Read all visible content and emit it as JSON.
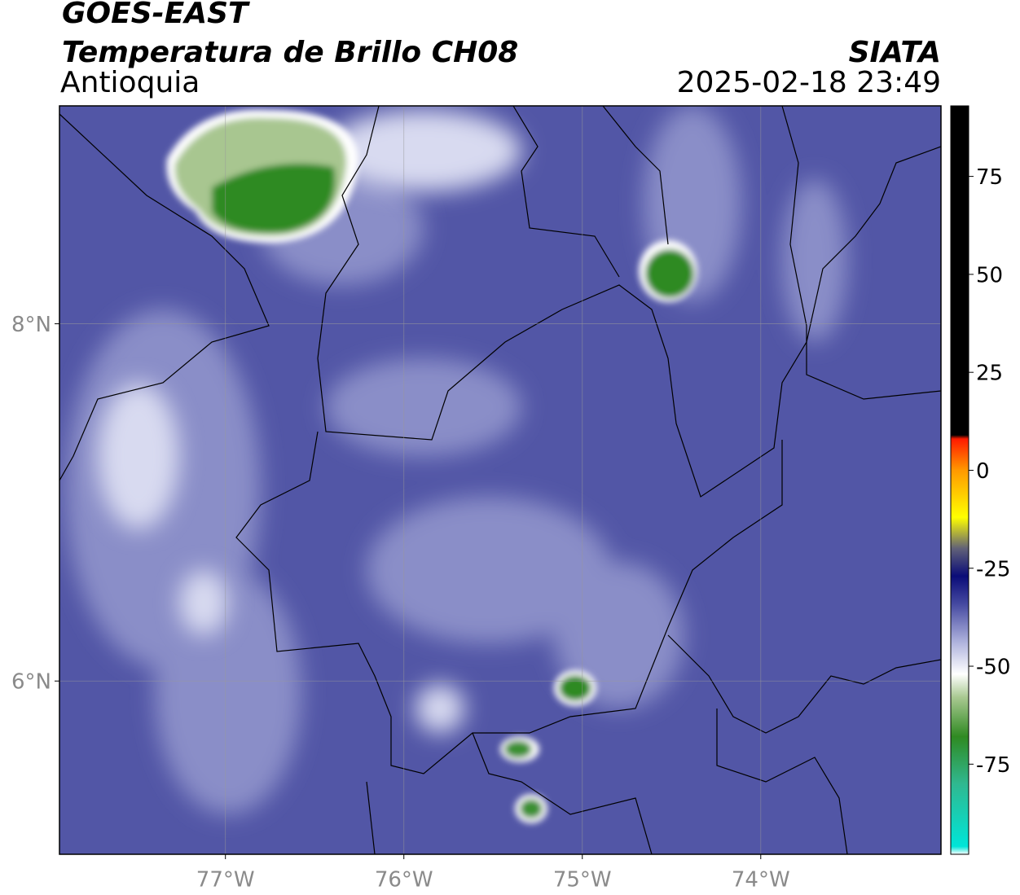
{
  "header": {
    "title": "GOES-EAST",
    "subtitle": "Temperatura de Brillo CH08",
    "region": "Antioquia",
    "source": "SIATA",
    "timestamp": "2025-02-18 23:49"
  },
  "map": {
    "type": "raster-map",
    "xlim": [
      -77.93,
      -72.99
    ],
    "ylim": [
      5.03,
      9.22
    ],
    "xticks": [
      {
        "value": -77,
        "label": "77°W"
      },
      {
        "value": -76,
        "label": "76°W"
      },
      {
        "value": -75,
        "label": "75°W"
      },
      {
        "value": -74,
        "label": "74°W"
      }
    ],
    "yticks": [
      {
        "value": 8,
        "label": "8°N"
      },
      {
        "value": 6,
        "label": "6°N"
      }
    ],
    "grid": true
  },
  "colorbar": {
    "clim": [
      -98,
      93
    ],
    "ticks": [
      75,
      50,
      25,
      0,
      -25,
      -50,
      -75
    ],
    "stops": [
      {
        "value": -98,
        "color": "#ffffff"
      },
      {
        "value": -96,
        "color": "#00e5d8"
      },
      {
        "value": -80,
        "color": "#30b890"
      },
      {
        "value": -68,
        "color": "#2f8a22"
      },
      {
        "value": -58,
        "color": "#a8c890"
      },
      {
        "value": -52,
        "color": "#ffffff"
      },
      {
        "value": -44,
        "color": "#b0b4de"
      },
      {
        "value": -34,
        "color": "#4448a0"
      },
      {
        "value": -27,
        "color": "#0a0c78"
      },
      {
        "value": -20,
        "color": "#606078"
      },
      {
        "value": -12,
        "color": "#ffff00"
      },
      {
        "value": 0,
        "color": "#ff9900"
      },
      {
        "value": 8,
        "color": "#ff1a00"
      },
      {
        "value": 9,
        "color": "#000000"
      },
      {
        "value": 93,
        "color": "#000000"
      }
    ]
  }
}
